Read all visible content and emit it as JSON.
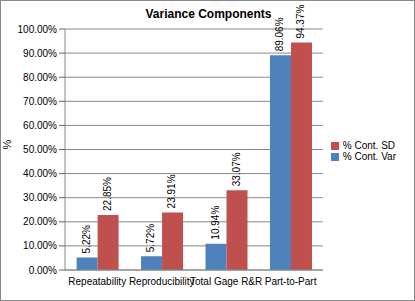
{
  "chart_data": {
    "type": "bar",
    "title": "Variance Components",
    "y_label": "%",
    "categories": [
      "Repeatability",
      "Reproducibility",
      "Total Gage R&R",
      "Part-to-Part"
    ],
    "series": [
      {
        "name": "% Cont. Var",
        "color": "#4f81bd",
        "values": [
          5.22,
          5.72,
          10.94,
          89.06
        ],
        "value_labels": [
          "5.22%",
          "5.72%",
          "10.94%",
          "89.06%"
        ]
      },
      {
        "name": "% Cont. SD",
        "color": "#c0504d",
        "values": [
          22.85,
          23.91,
          33.07,
          94.37
        ],
        "value_labels": [
          "22.85%",
          "23.91%",
          "33.07%",
          "94.37%"
        ]
      }
    ],
    "ylim": [
      0,
      100
    ],
    "yticks": [
      {
        "value": 0,
        "label": "0.00%"
      },
      {
        "value": 10,
        "label": "10.00%"
      },
      {
        "value": 20,
        "label": "20.00%"
      },
      {
        "value": 30,
        "label": "30.00%"
      },
      {
        "value": 40,
        "label": "40.00%"
      },
      {
        "value": 50,
        "label": "50.00%"
      },
      {
        "value": 60,
        "label": "60.00%"
      },
      {
        "value": 70,
        "label": "70.00%"
      },
      {
        "value": 80,
        "label": "80.00%"
      },
      {
        "value": 90,
        "label": "90.00%"
      },
      {
        "value": 100,
        "label": "100.00%"
      }
    ],
    "grid": true,
    "legend": "right",
    "data_labels": true
  }
}
